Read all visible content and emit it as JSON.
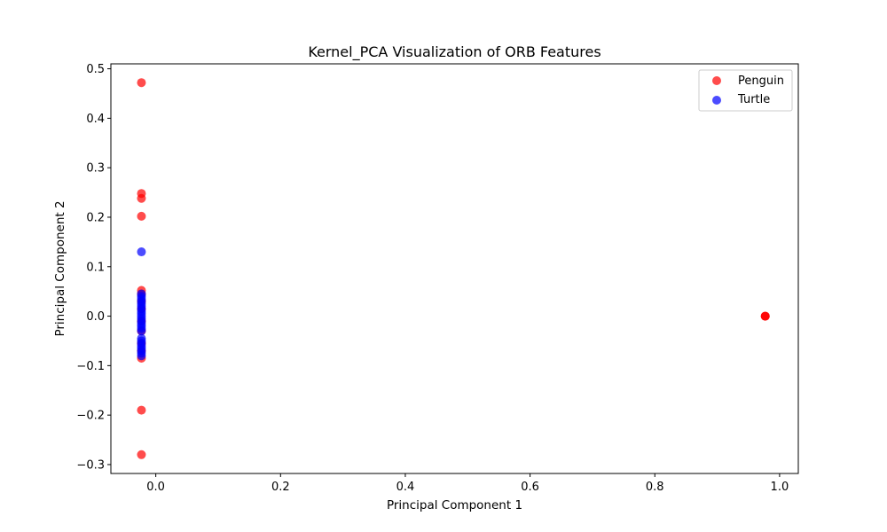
{
  "chart_data": {
    "type": "scatter",
    "title": "Kernel_PCA Visualization of ORB Features",
    "xlabel": "Principal Component 1",
    "ylabel": "Principal Component 2",
    "xlim": [
      -0.072,
      1.03
    ],
    "ylim": [
      -0.318,
      0.51
    ],
    "xticks": [
      0.0,
      0.2,
      0.4,
      0.6,
      0.8,
      1.0
    ],
    "xtick_labels": [
      "0.0",
      "0.2",
      "0.4",
      "0.6",
      "0.8",
      "1.0"
    ],
    "yticks": [
      -0.3,
      -0.2,
      -0.1,
      0.0,
      0.1,
      0.2,
      0.3,
      0.4,
      0.5
    ],
    "ytick_labels": [
      "−0.3",
      "−0.2",
      "−0.1",
      "0.0",
      "0.1",
      "0.2",
      "0.3",
      "0.4",
      "0.5"
    ],
    "grid": false,
    "legend_position": "top-right",
    "series": [
      {
        "name": "Penguin",
        "color": "#ff0000",
        "points": [
          [
            -0.023,
            0.472
          ],
          [
            -0.023,
            0.248
          ],
          [
            -0.023,
            0.238
          ],
          [
            -0.023,
            0.202
          ],
          [
            -0.023,
            0.052
          ],
          [
            -0.023,
            0.045
          ],
          [
            -0.023,
            0.03
          ],
          [
            -0.023,
            0.015
          ],
          [
            -0.023,
            -0.01
          ],
          [
            -0.023,
            -0.03
          ],
          [
            -0.023,
            -0.055
          ],
          [
            -0.023,
            -0.07
          ],
          [
            -0.023,
            -0.085
          ],
          [
            -0.023,
            -0.19
          ],
          [
            -0.023,
            -0.28
          ],
          [
            0.977,
            0.0
          ],
          [
            0.977,
            0.0
          ],
          [
            0.977,
            0.0
          ]
        ]
      },
      {
        "name": "Turtle",
        "color": "#0000ff",
        "points": [
          [
            -0.023,
            0.13
          ],
          [
            -0.023,
            0.045
          ],
          [
            -0.023,
            0.04
          ],
          [
            -0.023,
            0.035
          ],
          [
            -0.023,
            0.03
          ],
          [
            -0.023,
            0.025
          ],
          [
            -0.023,
            0.02
          ],
          [
            -0.023,
            0.015
          ],
          [
            -0.023,
            0.01
          ],
          [
            -0.023,
            0.005
          ],
          [
            -0.023,
            0.0
          ],
          [
            -0.023,
            -0.005
          ],
          [
            -0.023,
            -0.01
          ],
          [
            -0.023,
            -0.015
          ],
          [
            -0.023,
            -0.02
          ],
          [
            -0.023,
            -0.025
          ],
          [
            -0.023,
            -0.03
          ],
          [
            -0.023,
            -0.045
          ],
          [
            -0.023,
            -0.05
          ],
          [
            -0.023,
            -0.055
          ],
          [
            -0.023,
            -0.06
          ],
          [
            -0.023,
            -0.065
          ],
          [
            -0.023,
            -0.07
          ],
          [
            -0.023,
            -0.075
          ],
          [
            -0.023,
            -0.08
          ]
        ]
      }
    ]
  }
}
